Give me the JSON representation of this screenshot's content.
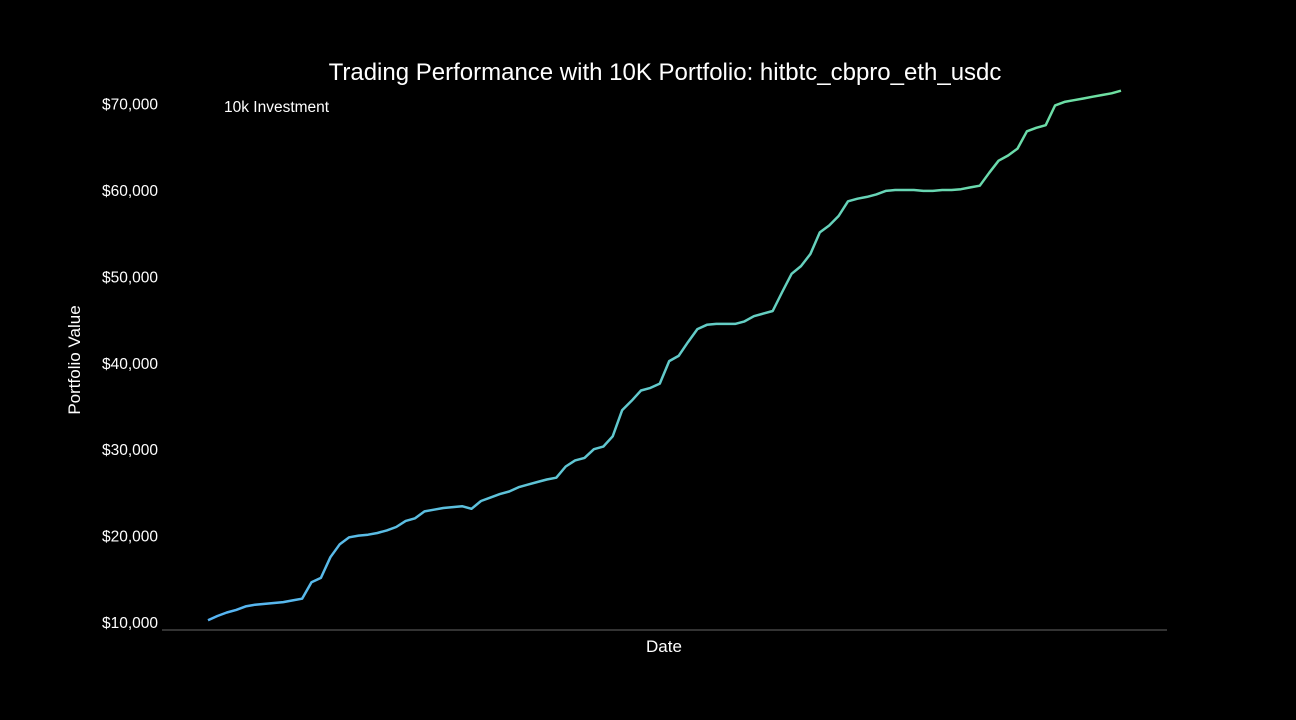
{
  "chart_data": {
    "type": "line",
    "title": "Trading Performance with 10K Portfolio: hitbtc_cbpro_eth_usdc",
    "xlabel": "Date",
    "ylabel": "Portfolio Value",
    "ylim": [
      10000,
      71000
    ],
    "yticks": [
      10000,
      20000,
      30000,
      40000,
      50000,
      60000,
      70000
    ],
    "ytick_labels": [
      "$10,000",
      "$20,000",
      "$30,000",
      "$40,000",
      "$50,000",
      "$60,000",
      "$70,000"
    ],
    "xticks_visible": false,
    "grid": false,
    "legend": {
      "position": "top-left",
      "entries": [
        "10k Investment"
      ]
    },
    "series": [
      {
        "name": "10k Investment",
        "color_start": "#56b4f4",
        "color_end": "#6ee0a0",
        "values": [
          10200,
          10700,
          11100,
          11400,
          11800,
          12000,
          12100,
          12200,
          12300,
          12500,
          12700,
          14600,
          15100,
          17500,
          19000,
          19800,
          20000,
          20100,
          20300,
          20600,
          21000,
          21700,
          22000,
          22800,
          23000,
          23200,
          23300,
          23400,
          23100,
          24000,
          24400,
          24800,
          25100,
          25600,
          25900,
          26200,
          26500,
          26700,
          28000,
          28700,
          29000,
          30000,
          30300,
          31500,
          34500,
          35600,
          36800,
          37100,
          37600,
          40200,
          40800,
          42400,
          43900,
          44400,
          44500,
          44500,
          44500,
          44800,
          45400,
          45700,
          46000,
          48200,
          50300,
          51200,
          52600,
          55100,
          55900,
          57000,
          58700,
          59000,
          59200,
          59500,
          59900,
          60000,
          60000,
          60000,
          59900,
          59900,
          60000,
          60000,
          60100,
          60300,
          60500,
          62000,
          63400,
          64000,
          64800,
          66800,
          67200,
          67500,
          69800,
          70200,
          70400,
          70600,
          70800,
          71000,
          71200,
          71500
        ]
      }
    ]
  }
}
